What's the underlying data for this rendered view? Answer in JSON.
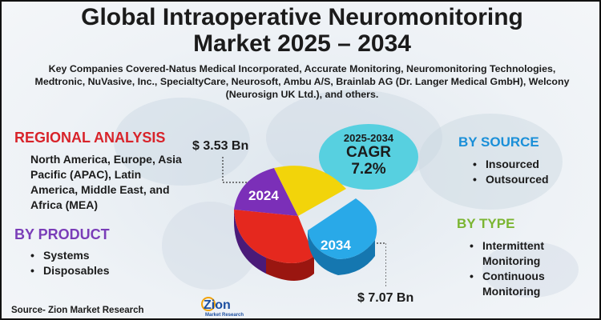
{
  "title": {
    "line1": "Global Intraoperative Neuromonitoring",
    "line2": "Market 2025 – 2034"
  },
  "companies": "Key Companies Covered-Natus Medical Incorporated, Accurate Monitoring, Neuromonitoring Technologies, Medtronic, NuVasive, Inc., SpecialtyCare, Neurosoft, Ambu A/S, Brainlab AG (Dr. Langer Medical GmbH), Welcony (Neurosign UK Ltd.), and others.",
  "regional": {
    "heading": "REGIONAL ANALYSIS",
    "text": "North America, Europe, Asia Pacific (APAC), Latin America, Middle East, and Africa (MEA)"
  },
  "product": {
    "heading": "BY PRODUCT",
    "items": [
      "Systems",
      "Disposables"
    ]
  },
  "source_segment": {
    "heading": "BY SOURCE",
    "items": [
      "Insourced",
      "Outsourced"
    ]
  },
  "type_segment": {
    "heading": "BY TYPE",
    "items": [
      "Intermittent Monitoring",
      "Continuous Monitoring"
    ]
  },
  "cagr": {
    "years": "2025-2034",
    "label": "CAGR",
    "value": "7.2%"
  },
  "market_values": {
    "start_label": "$ 3.53 Bn",
    "start_year": "2024",
    "end_label": "$ 7.07 Bn",
    "end_year": "2034"
  },
  "source_note": "Source- Zion Market Research",
  "logo": {
    "name": "Zion",
    "sub": "Market Research"
  },
  "colors": {
    "regional": "#d8232a",
    "product": "#7a3db8",
    "source": "#1a8fd8",
    "type": "#7bb531",
    "cagr_bubble": "#57d0e0",
    "pie_purple": "#7b2fb8",
    "pie_yellow": "#f2d40a",
    "pie_red": "#e5281e",
    "pie_blue": "#29a9e8"
  }
}
